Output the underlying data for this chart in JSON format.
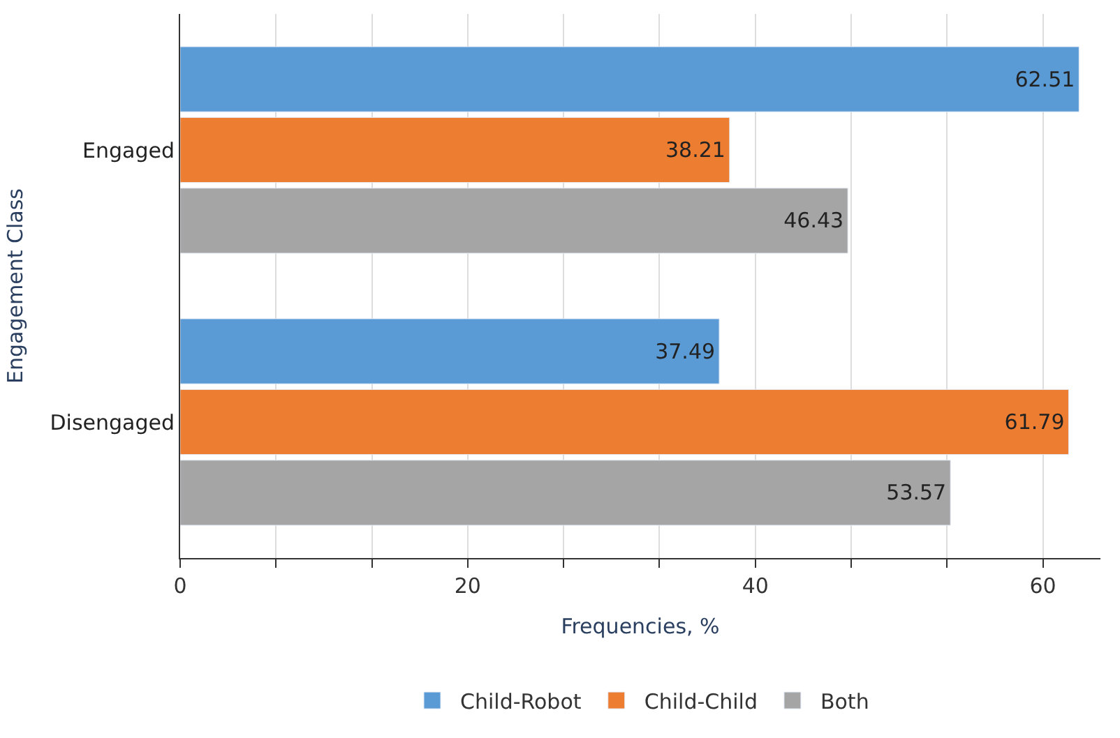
{
  "chart_data": {
    "type": "bar",
    "orientation": "horizontal",
    "xlabel": "Frequencies, %",
    "ylabel": "Engagement Class",
    "categories": [
      "Engaged",
      "Disengaged"
    ],
    "series": [
      {
        "name": "Child-Robot",
        "color": "#5b9bd5",
        "values": [
          62.51,
          37.49
        ]
      },
      {
        "name": "Child-Child",
        "color": "#ed7d31",
        "values": [
          38.21,
          61.79
        ]
      },
      {
        "name": "Both",
        "color": "#a5a5a5",
        "values": [
          46.43,
          53.57
        ]
      }
    ],
    "xlim": [
      0,
      64
    ],
    "xticks": [
      0,
      {
        "value": 6.667,
        "label": null
      },
      {
        "value": 13.333,
        "label": null
      },
      20,
      {
        "value": 26.667,
        "label": null
      },
      {
        "value": 33.333,
        "label": null
      },
      40,
      {
        "value": 46.667,
        "label": null
      },
      {
        "value": 53.333,
        "label": null
      },
      60
    ],
    "grid": "x",
    "legend": "bottom",
    "data_labels": true
  }
}
